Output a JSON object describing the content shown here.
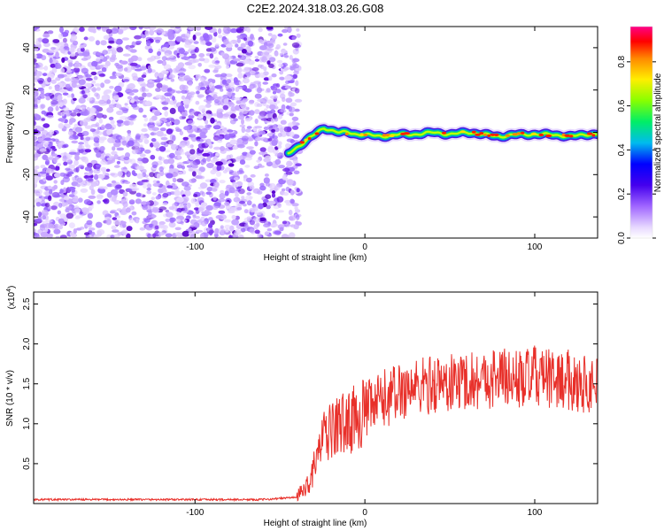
{
  "title": "C2E2.2024.318.03.26.G08",
  "chart_data": [
    {
      "type": "heatmap",
      "title": "C2E2.2024.318.03.26.G08",
      "xlabel": "Height of straight line (km)",
      "ylabel": "Frequency (Hz)",
      "xlim": [
        -195,
        137
      ],
      "ylim": [
        -50,
        50
      ],
      "xticks": [
        -100,
        0,
        100
      ],
      "yticks": [
        -40,
        -20,
        0,
        20,
        40
      ],
      "noise_region_x": [
        -195,
        -40
      ],
      "signal_track": {
        "x": [
          -45,
          -38,
          -33,
          -28,
          -24,
          -20,
          -15,
          -10,
          -5,
          0,
          10,
          20,
          30,
          40,
          50,
          60,
          70,
          80,
          90,
          100,
          110,
          120,
          130,
          137
        ],
        "y": [
          -10,
          -6,
          -3,
          0,
          2,
          1,
          0,
          0,
          -1,
          -1,
          -2,
          -1,
          -1,
          0,
          -1,
          0,
          -1,
          -2,
          -1,
          -1,
          -1,
          -2,
          -1,
          -1
        ]
      },
      "colorbar": {
        "label": "Normalized spectral amplitude",
        "range": [
          0.0,
          0.96
        ],
        "ticks": [
          0.0,
          0.2,
          0.4,
          0.6,
          0.8
        ],
        "tick_labels": [
          "0.0",
          "0.2",
          "0.4",
          "0.6",
          "0.8"
        ],
        "colors": [
          "#ffffff",
          "#cc99ff",
          "#6600cc",
          "#0000ff",
          "#00cccc",
          "#00ff00",
          "#ffff00",
          "#ff9900",
          "#ff0000",
          "#ff0099"
        ]
      },
      "grid": false
    },
    {
      "type": "line",
      "xlabel": "Height of straight line (km)",
      "ylabel": "SNR (10 * v/v)",
      "ylabel_multiplier": "(x10",
      "ylabel_multiplier_exp": "4",
      "xlim": [
        -195,
        137
      ],
      "ylim": [
        0,
        2.65
      ],
      "xticks": [
        -100,
        0,
        100
      ],
      "yticks": [
        0.5,
        1.0,
        1.5,
        2.0,
        2.5
      ],
      "ytick_labels": [
        "0.5",
        "1.0",
        "1.5",
        "2.0",
        "2.5"
      ],
      "series": [
        {
          "color": "#e8302a",
          "x": [
            -195,
            -150,
            -100,
            -60,
            -40,
            -35,
            -32,
            -30,
            -28,
            -25,
            -20,
            -15,
            -10,
            -5,
            0,
            5,
            10,
            15,
            20,
            25,
            30,
            40,
            50,
            60,
            70,
            80,
            90,
            100,
            110,
            120,
            130,
            137
          ],
          "y": [
            0.05,
            0.05,
            0.05,
            0.05,
            0.08,
            0.2,
            0.3,
            0.45,
            0.6,
            0.8,
            0.9,
            1.0,
            1.0,
            1.1,
            1.15,
            1.2,
            1.3,
            1.35,
            1.4,
            1.45,
            1.45,
            1.5,
            1.5,
            1.55,
            1.55,
            1.6,
            1.55,
            1.6,
            1.55,
            1.55,
            1.5,
            1.5
          ]
        }
      ],
      "grid": false
    }
  ]
}
